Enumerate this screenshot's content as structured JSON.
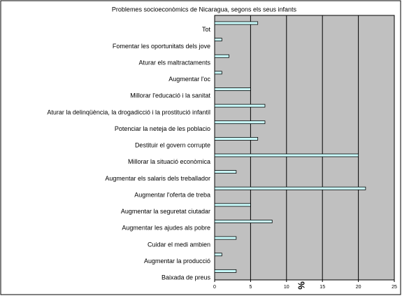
{
  "chart_data": {
    "type": "bar",
    "orientation": "horizontal",
    "title": "Problemes socioeconòmics de Nicaragua, segons els seus infants",
    "categories": [
      "Tot",
      "Fomentar les oportunitats dels jove",
      "Aturar els maltractaments",
      "Augmentar l'oc",
      "Millorar l'educació i la sanitat",
      "Aturar la delinqüència, la drogadicció i la prostitució infantil",
      "Potenciar la neteja de les poblacio",
      "Destituir el govern corrupte",
      "Millorar la situació econòmica",
      "Augmentar els salaris dels treballador",
      "Augmentar l'oferta de treba",
      "Augmentar la seguretat ciutadar",
      "Augmentar les ajudes als pobre",
      "Cuidar el medi ambien",
      "Augmentar la producció",
      "Baixada de preus"
    ],
    "values": [
      6,
      1,
      2,
      1,
      5,
      7,
      7,
      6,
      20,
      3,
      21,
      5,
      8,
      3,
      1,
      3
    ],
    "color": "#ccffff",
    "x_label": "%",
    "xlim": [
      0,
      25
    ],
    "xticks": [
      0,
      5,
      10,
      15,
      20,
      25
    ],
    "grid": true
  }
}
